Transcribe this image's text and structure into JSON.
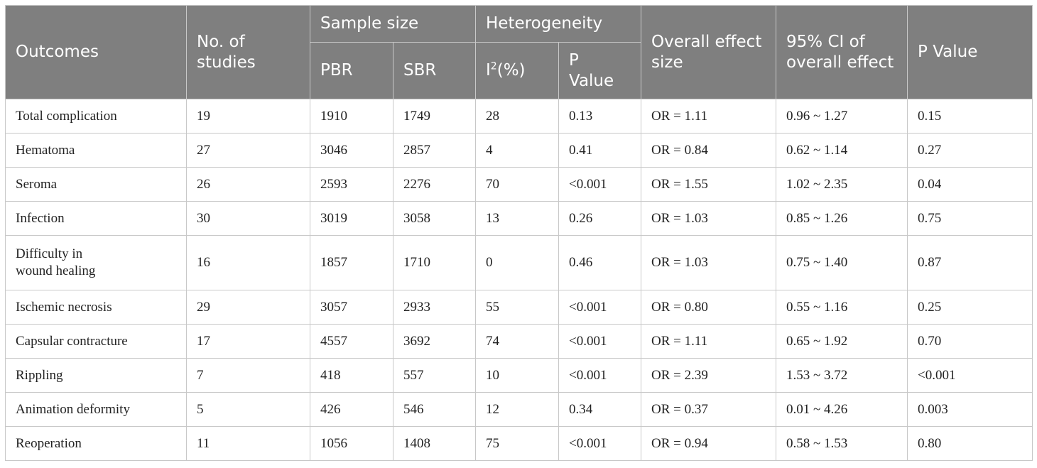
{
  "header": {
    "outcomes": "Outcomes",
    "num_studies": "No. of studies",
    "sample_size": "Sample size",
    "pbr": "PBR",
    "sbr": "SBR",
    "heterogeneity": "Heterogeneity",
    "i2_base": "I",
    "i2_sup": "2",
    "i2_rest": "(%)",
    "p_value_sub": "P Value",
    "overall_effect": "Overall effect size",
    "ci": "95% CI of overall effect",
    "p_value": "P Value"
  },
  "rows": [
    {
      "outcome": "Total complication",
      "studies": "19",
      "pbr": "1910",
      "sbr": "1749",
      "i2": "28",
      "het_p": "0.13",
      "effect": "OR = 1.11",
      "ci": "0.96 ~ 1.27",
      "p": "0.15"
    },
    {
      "outcome": "Hematoma",
      "studies": "27",
      "pbr": "3046",
      "sbr": "2857",
      "i2": "4",
      "het_p": "0.41",
      "effect": "OR = 0.84",
      "ci": "0.62 ~ 1.14",
      "p": "0.27"
    },
    {
      "outcome": "Seroma",
      "studies": "26",
      "pbr": "2593",
      "sbr": "2276",
      "i2": "70",
      "het_p": "<0.001",
      "effect": "OR = 1.55",
      "ci": "1.02 ~ 2.35",
      "p": "0.04"
    },
    {
      "outcome": "Infection",
      "studies": "30",
      "pbr": "3019",
      "sbr": "3058",
      "i2": "13",
      "het_p": "0.26",
      "effect": "OR = 1.03",
      "ci": "0.85 ~ 1.26",
      "p": "0.75"
    },
    {
      "outcome": "Difficulty in wound healing",
      "studies": "16",
      "pbr": "1857",
      "sbr": "1710",
      "i2": "0",
      "het_p": "0.46",
      "effect": "OR = 1.03",
      "ci": "0.75 ~ 1.40",
      "p": "0.87"
    },
    {
      "outcome": "Ischemic necrosis",
      "studies": "29",
      "pbr": "3057",
      "sbr": "2933",
      "i2": "55",
      "het_p": "<0.001",
      "effect": "OR = 0.80",
      "ci": "0.55 ~ 1.16",
      "p": "0.25"
    },
    {
      "outcome": "Capsular contracture",
      "studies": "17",
      "pbr": "4557",
      "sbr": "3692",
      "i2": "74",
      "het_p": "<0.001",
      "effect": "OR = 1.11",
      "ci": "0.65 ~ 1.92",
      "p": "0.70"
    },
    {
      "outcome": "Rippling",
      "studies": "7",
      "pbr": "418",
      "sbr": "557",
      "i2": "10",
      "het_p": "<0.001",
      "effect": "OR = 2.39",
      "ci": "1.53 ~ 3.72",
      "p": "<0.001"
    },
    {
      "outcome": "Animation deformity",
      "studies": "5",
      "pbr": "426",
      "sbr": "546",
      "i2": "12",
      "het_p": "0.34",
      "effect": "OR = 0.37",
      "ci": "0.01 ~ 4.26",
      "p": "0.003"
    },
    {
      "outcome": "Reoperation",
      "studies": "11",
      "pbr": "1056",
      "sbr": "1408",
      "i2": "75",
      "het_p": "<0.001",
      "effect": "OR = 0.94",
      "ci": "0.58 ~ 1.53",
      "p": "0.80"
    }
  ],
  "colors": {
    "header_bg": "#7f7f7f",
    "header_text": "#ffffff",
    "border": "#c8c8c8",
    "body_text": "#222222"
  }
}
